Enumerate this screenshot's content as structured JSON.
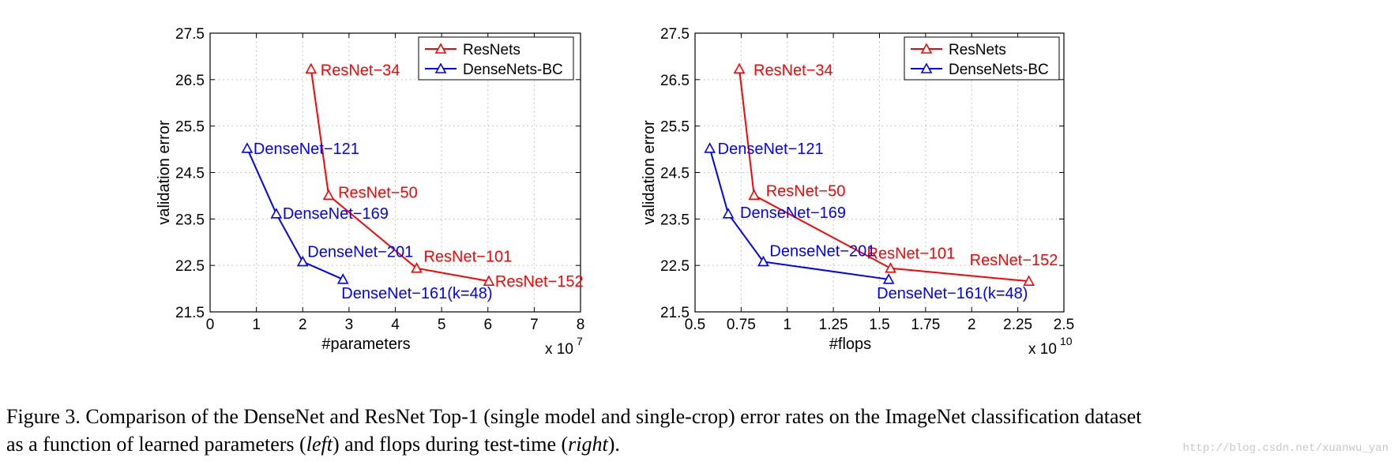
{
  "chart_data": [
    {
      "type": "line",
      "xlabel": "#parameters",
      "ylabel": "validation error",
      "x_multiplier": {
        "base": "x 10",
        "exponent": "7"
      },
      "xlim": [
        0,
        8
      ],
      "ylim": [
        21.5,
        27.5
      ],
      "xticks": [
        0,
        1,
        2,
        3,
        4,
        5,
        6,
        7,
        8
      ],
      "xtick_labels": [
        "0",
        "1",
        "2",
        "3",
        "4",
        "5",
        "6",
        "7",
        "8"
      ],
      "yticks": [
        21.5,
        22.5,
        23.5,
        24.5,
        25.5,
        26.5,
        27.5
      ],
      "ytick_labels": [
        "21.5",
        "22.5",
        "23.5",
        "24.5",
        "25.5",
        "26.5",
        "27.5"
      ],
      "legend": {
        "position": "top-right",
        "entries": [
          "ResNets",
          "DenseNets-BC"
        ]
      },
      "series": [
        {
          "name": "ResNets",
          "color": "#ff0000",
          "x": [
            2.18,
            2.56,
            4.46,
            6.02
          ],
          "y": [
            26.73,
            24.01,
            22.44,
            22.16
          ],
          "labels": [
            "ResNet−34",
            "ResNet−50",
            "ResNet−101",
            "ResNet−152"
          ]
        },
        {
          "name": "DenseNets-BC",
          "color": "#0000ff",
          "x": [
            0.8,
            1.43,
            2.0,
            2.87
          ],
          "y": [
            25.02,
            23.61,
            22.58,
            22.2
          ],
          "labels": [
            "DenseNet−121",
            "DenseNet−169",
            "DenseNet−201",
            "DenseNet−161(k=48)"
          ]
        }
      ]
    },
    {
      "type": "line",
      "xlabel": "#flops",
      "ylabel": "validation error",
      "x_multiplier": {
        "base": "x 10",
        "exponent": "10"
      },
      "xlim": [
        0.5,
        2.5
      ],
      "ylim": [
        21.5,
        27.5
      ],
      "xticks": [
        0.5,
        0.75,
        1,
        1.25,
        1.5,
        1.75,
        2,
        2.25,
        2.5
      ],
      "xtick_labels": [
        "0.5",
        "0.75",
        "1",
        "1.25",
        "1.5",
        "1.75",
        "2",
        "2.25",
        "2.5"
      ],
      "yticks": [
        21.5,
        22.5,
        23.5,
        24.5,
        25.5,
        26.5,
        27.5
      ],
      "ytick_labels": [
        "21.5",
        "22.5",
        "23.5",
        "24.5",
        "25.5",
        "26.5",
        "27.5"
      ],
      "legend": {
        "position": "top-right",
        "entries": [
          "ResNets",
          "DenseNets-BC"
        ]
      },
      "series": [
        {
          "name": "ResNets",
          "color": "#ff0000",
          "x": [
            0.74,
            0.82,
            1.56,
            2.31
          ],
          "y": [
            26.73,
            24.01,
            22.44,
            22.16
          ],
          "labels": [
            "ResNet−34",
            "ResNet−50",
            "ResNet−101",
            "ResNet−152"
          ]
        },
        {
          "name": "DenseNets-BC",
          "color": "#0000ff",
          "x": [
            0.58,
            0.68,
            0.87,
            1.55
          ],
          "y": [
            25.02,
            23.61,
            22.58,
            22.2
          ],
          "labels": [
            "DenseNet−121",
            "DenseNet−169",
            "DenseNet−201",
            "DenseNet−161(k=48)"
          ]
        }
      ]
    }
  ],
  "caption": {
    "line1": "Figure 3. Comparison of the DenseNet and ResNet Top-1 (single model and single-crop) error rates on the ImageNet classification dataset",
    "line2_prefix": "as a function of learned parameters (",
    "left_word": "left",
    "line2_middle": ") and flops during test-time (",
    "right_word": "right",
    "line2_suffix": ")."
  },
  "watermark": "http://blog.csdn.net/xuanwu_yan"
}
